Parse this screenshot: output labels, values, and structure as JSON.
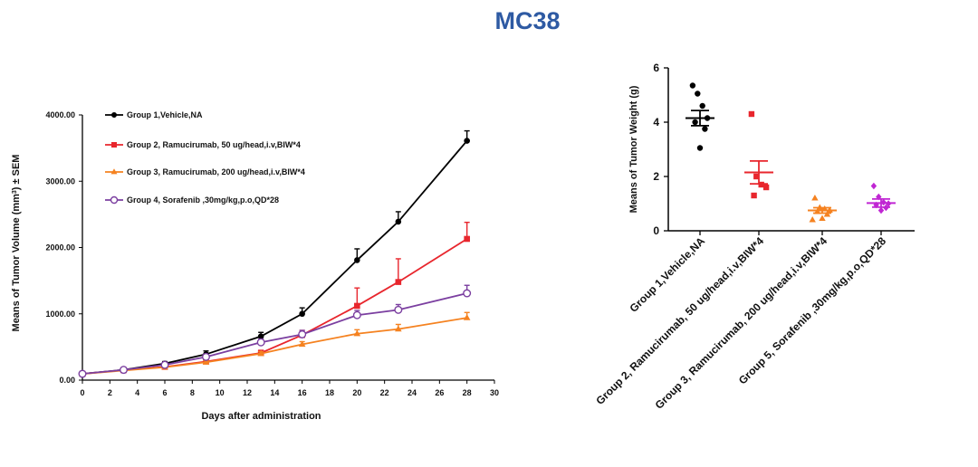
{
  "title": "MC38",
  "chart_data": [
    {
      "type": "line",
      "title": "",
      "xlabel": "Days after administration",
      "ylabel_main": "Means of Tumor Volume (mm",
      "ylabel_sup": "3",
      "ylabel_tail": ") ± SEM",
      "xlim": [
        0,
        30
      ],
      "ylim": [
        0,
        4000
      ],
      "xticks": [
        0,
        2,
        4,
        6,
        8,
        10,
        12,
        14,
        16,
        18,
        20,
        22,
        24,
        26,
        28,
        30
      ],
      "yticks": [
        0,
        1000,
        2000,
        3000,
        4000
      ],
      "ytick_labels": [
        "0.00",
        "1000.00",
        "2000.00",
        "3000.00",
        "4000.00"
      ],
      "x": [
        0,
        3,
        6,
        9,
        13,
        16,
        20,
        23,
        28
      ],
      "series": [
        {
          "name": "Group 1,Vehicle,NA",
          "color": "#000000",
          "marker": "circle",
          "values": [
            95,
            155,
            250,
            390,
            660,
            1000,
            1810,
            2390,
            3610
          ],
          "errors": [
            15,
            20,
            30,
            50,
            60,
            90,
            170,
            150,
            150
          ]
        },
        {
          "name": "Group 2, Ramucirumab, 50 ug/head,i.v,BIW*4",
          "color": "#e8262d",
          "marker": "square",
          "values": [
            95,
            150,
            200,
            280,
            410,
            680,
            1120,
            1480,
            2130
          ],
          "errors": [
            10,
            15,
            20,
            30,
            40,
            70,
            270,
            350,
            250
          ]
        },
        {
          "name": "Group 3, Ramucirumab, 200 ug/head,i.v,BIW*4",
          "color": "#f58220",
          "marker": "triangle",
          "values": [
            95,
            145,
            195,
            270,
            400,
            540,
            700,
            770,
            940
          ],
          "errors": [
            10,
            12,
            18,
            25,
            30,
            40,
            60,
            70,
            80
          ]
        },
        {
          "name": "Group 4, Sorafenib ,30mg/kg,p.o,QD*28",
          "color": "#7b3fa0",
          "marker": "open-circle",
          "values": [
            95,
            155,
            230,
            350,
            570,
            690,
            980,
            1060,
            1310
          ],
          "errors": [
            10,
            15,
            20,
            30,
            50,
            60,
            70,
            80,
            120
          ]
        }
      ]
    },
    {
      "type": "scatter",
      "ylabel": "Means of Tumor Weight (g)",
      "ylim": [
        0,
        6
      ],
      "yticks": [
        0,
        2,
        4,
        6
      ],
      "ytick_labels": [
        "0",
        "2",
        "4",
        "6"
      ],
      "categories": [
        "Group 1,Vehicle,NA",
        "Group 2, Ramucirumab, 50 ug/head,i.v,BIW*4",
        "Group 3, Ramucirumab, 200 ug/head,i.v,BIW*4",
        "Group 5, Sorafenib ,30mg/kg,p.o,QD*28"
      ],
      "groups": [
        {
          "color": "#000000",
          "marker": "circle",
          "mean": 4.15,
          "sem": 0.28,
          "points": [
            5.35,
            5.05,
            4.6,
            4.15,
            4.0,
            3.75,
            3.05
          ]
        },
        {
          "color": "#e8262d",
          "marker": "square",
          "mean": 2.15,
          "sem": 0.42,
          "points": [
            4.3,
            2.0,
            1.7,
            1.6,
            1.3
          ]
        },
        {
          "color": "#f58220",
          "marker": "triangle",
          "mean": 0.75,
          "sem": 0.1,
          "points": [
            1.2,
            0.85,
            0.8,
            0.75,
            0.7,
            0.6,
            0.45,
            0.4
          ]
        },
        {
          "color": "#c026d3",
          "marker": "diamond",
          "mean": 1.02,
          "sem": 0.15,
          "points": [
            1.65,
            1.25,
            1.05,
            1.0,
            0.95,
            0.85,
            0.75
          ]
        }
      ]
    }
  ]
}
